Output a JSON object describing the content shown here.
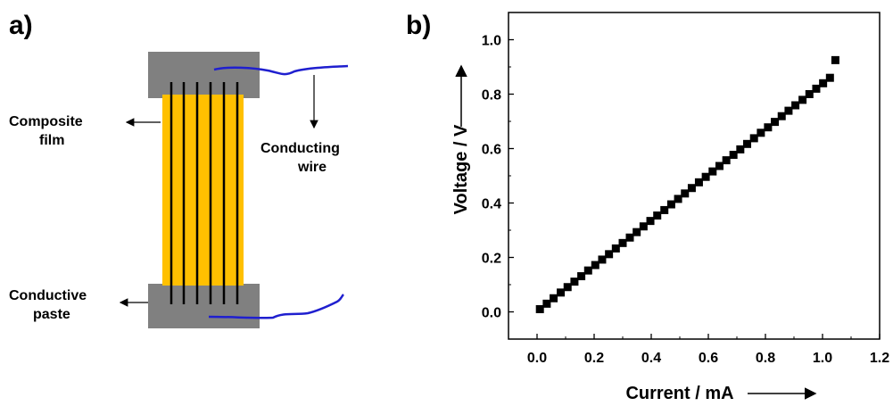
{
  "panel_a": {
    "label": "a)",
    "annotations": {
      "composite_line1": "Composite",
      "composite_line2": "film",
      "wire_line1": "Conducting",
      "wire_line2": "wire",
      "paste_line1": "Conductive",
      "paste_line2": "paste"
    },
    "colors": {
      "film": "#FFC000",
      "paste": "#808080",
      "wire": "#1F1FCF",
      "electrode": "#000000"
    }
  },
  "panel_b": {
    "label": "b)"
  },
  "chart_data": {
    "type": "scatter",
    "title": "",
    "xlabel": "Current / mA",
    "ylabel": "Voltage / V",
    "xlim": [
      -0.1,
      1.2
    ],
    "ylim": [
      -0.1,
      1.1
    ],
    "xticks": [
      "0.0",
      "0.2",
      "0.4",
      "0.6",
      "0.8",
      "1.0",
      "1.2"
    ],
    "yticks": [
      "0.0",
      "0.2",
      "0.4",
      "0.6",
      "0.8",
      "1.0"
    ],
    "grid": false,
    "marker": "square",
    "marker_color": "#000000",
    "series": [
      {
        "x": [
          0.01,
          0.034,
          0.058,
          0.083,
          0.107,
          0.131,
          0.155,
          0.179,
          0.204,
          0.228,
          0.252,
          0.276,
          0.3,
          0.325,
          0.349,
          0.373,
          0.397,
          0.421,
          0.446,
          0.47,
          0.494,
          0.518,
          0.542,
          0.567,
          0.591,
          0.615,
          0.639,
          0.663,
          0.688,
          0.712,
          0.736,
          0.76,
          0.784,
          0.809,
          0.833,
          0.857,
          0.881,
          0.905,
          0.93,
          0.954,
          0.978,
          1.002,
          1.026,
          1.045
        ],
        "y": [
          0.01,
          0.03,
          0.05,
          0.071,
          0.091,
          0.111,
          0.131,
          0.152,
          0.172,
          0.192,
          0.212,
          0.233,
          0.253,
          0.273,
          0.293,
          0.314,
          0.334,
          0.354,
          0.374,
          0.395,
          0.415,
          0.435,
          0.455,
          0.476,
          0.496,
          0.516,
          0.536,
          0.557,
          0.577,
          0.597,
          0.617,
          0.638,
          0.658,
          0.678,
          0.698,
          0.719,
          0.739,
          0.759,
          0.779,
          0.8,
          0.82,
          0.84,
          0.86,
          0.925
        ]
      }
    ]
  }
}
